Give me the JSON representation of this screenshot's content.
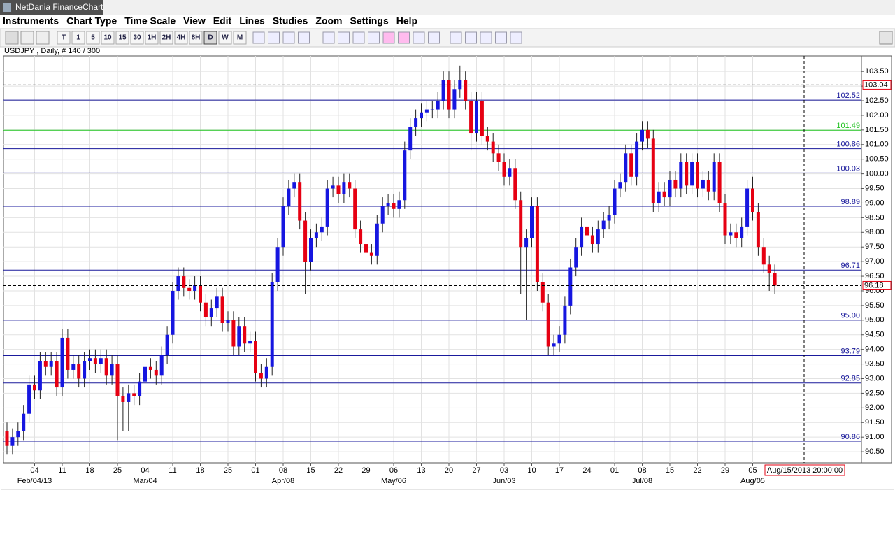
{
  "window_title": "NetDania FinanceChart",
  "menu": [
    "Instruments",
    "Chart Type",
    "Time Scale",
    "View",
    "Edit",
    "Lines",
    "Studies",
    "Zoom",
    "Settings",
    "Help"
  ],
  "toolbar": [
    "T",
    "1",
    "5",
    "10",
    "15",
    "30",
    "1H",
    "2H",
    "4H",
    "8H",
    "D",
    "W",
    "M"
  ],
  "chart_data": {
    "type": "candlestick",
    "title": "USDJPY , Daily, # 140 / 300",
    "categories": [
      null,
      null,
      null,
      null,
      null,
      "04",
      null,
      null,
      null,
      null,
      "11",
      null,
      null,
      null,
      null,
      "18",
      null,
      null,
      null,
      null,
      "25",
      null,
      null,
      null,
      null,
      "04",
      null,
      null,
      null,
      null,
      "11",
      null,
      null,
      null,
      null,
      "18",
      null,
      null,
      null,
      null,
      "25",
      null,
      null,
      null,
      null,
      "01",
      null,
      null,
      null,
      null,
      "08",
      null,
      null,
      null,
      null,
      "15",
      null,
      null,
      null,
      null,
      "22",
      null,
      null,
      null,
      null,
      "29",
      null,
      null,
      null,
      null,
      "06",
      null,
      null,
      null,
      null,
      "13",
      null,
      null,
      null,
      null,
      "20",
      null,
      null,
      null,
      null,
      "27",
      null,
      null,
      null,
      null,
      "03",
      null,
      null,
      null,
      null,
      "10",
      null,
      null,
      null,
      null,
      "17",
      null,
      null,
      null,
      null,
      "24",
      null,
      null,
      null,
      null,
      "01",
      null,
      null,
      null,
      null,
      "08",
      null,
      null,
      null,
      null,
      "15",
      null,
      null,
      null,
      null,
      "22",
      null,
      null,
      null,
      null,
      "29",
      null,
      null,
      null,
      null,
      "05",
      null,
      null,
      null,
      null
    ],
    "month_labels": [
      null,
      null,
      null,
      null,
      null,
      "Feb/04/13",
      null,
      null,
      null,
      null,
      null,
      null,
      null,
      null,
      null,
      null,
      null,
      null,
      null,
      null,
      null,
      null,
      null,
      null,
      null,
      "Mar/04",
      null,
      null,
      null,
      null,
      null,
      null,
      null,
      null,
      null,
      null,
      null,
      null,
      null,
      null,
      null,
      null,
      null,
      null,
      null,
      null,
      null,
      null,
      null,
      null,
      "Apr/08",
      null,
      null,
      null,
      null,
      null,
      null,
      null,
      null,
      null,
      null,
      null,
      null,
      null,
      null,
      null,
      null,
      null,
      null,
      null,
      "May/06",
      null,
      null,
      null,
      null,
      null,
      null,
      null,
      null,
      null,
      null,
      null,
      null,
      null,
      null,
      null,
      null,
      null,
      null,
      null,
      "Jun/03",
      null,
      null,
      null,
      null,
      null,
      null,
      null,
      null,
      null,
      null,
      null,
      null,
      null,
      null,
      null,
      null,
      null,
      null,
      null,
      null,
      null,
      null,
      null,
      null,
      "Jul/08",
      null,
      null,
      null,
      null,
      null,
      null,
      null,
      null,
      null,
      null,
      null,
      null,
      null,
      null,
      null,
      null,
      null,
      null,
      null,
      "Aug/05",
      null,
      null,
      null,
      null
    ],
    "ohlc": [
      [
        91.2,
        91.5,
        90.4,
        90.7
      ],
      [
        90.7,
        91.3,
        90.4,
        91.0
      ],
      [
        91.0,
        91.5,
        90.7,
        91.2
      ],
      [
        91.2,
        92.1,
        90.9,
        91.8
      ],
      [
        91.8,
        93.1,
        91.5,
        92.8
      ],
      [
        92.8,
        93.1,
        92.3,
        92.6
      ],
      [
        92.6,
        93.9,
        92.3,
        93.6
      ],
      [
        93.6,
        93.9,
        93.1,
        93.4
      ],
      [
        93.4,
        93.9,
        93.1,
        93.6
      ],
      [
        93.6,
        93.9,
        92.4,
        92.7
      ],
      [
        92.7,
        94.7,
        92.4,
        94.4
      ],
      [
        94.4,
        94.7,
        93.0,
        93.3
      ],
      [
        93.3,
        93.8,
        93.0,
        93.5
      ],
      [
        93.5,
        93.8,
        92.7,
        93.0
      ],
      [
        93.0,
        93.9,
        92.7,
        93.6
      ],
      [
        93.6,
        94.0,
        93.3,
        93.7
      ],
      [
        93.7,
        94.0,
        93.2,
        93.5
      ],
      [
        93.5,
        94.0,
        93.2,
        93.7
      ],
      [
        93.7,
        94.0,
        92.8,
        93.1
      ],
      [
        93.1,
        93.8,
        92.8,
        93.5
      ],
      [
        93.5,
        93.8,
        90.9,
        92.4
      ],
      [
        92.4,
        92.7,
        91.2,
        92.2
      ],
      [
        92.2,
        92.8,
        91.2,
        92.5
      ],
      [
        92.5,
        92.8,
        92.1,
        92.4
      ],
      [
        92.4,
        93.2,
        92.1,
        92.9
      ],
      [
        92.9,
        93.7,
        92.6,
        93.4
      ],
      [
        93.4,
        93.7,
        93.0,
        93.3
      ],
      [
        93.3,
        93.6,
        92.8,
        93.1
      ],
      [
        93.1,
        94.1,
        92.8,
        93.8
      ],
      [
        93.8,
        94.8,
        93.5,
        94.5
      ],
      [
        94.5,
        96.3,
        94.2,
        96.0
      ],
      [
        96.0,
        96.8,
        95.7,
        96.5
      ],
      [
        96.5,
        96.8,
        95.8,
        96.1
      ],
      [
        96.1,
        96.4,
        95.7,
        96.0
      ],
      [
        96.0,
        96.5,
        95.7,
        96.2
      ],
      [
        96.2,
        96.5,
        95.3,
        95.6
      ],
      [
        95.6,
        95.9,
        94.8,
        95.1
      ],
      [
        95.1,
        95.7,
        94.8,
        95.4
      ],
      [
        95.4,
        96.1,
        95.1,
        95.8
      ],
      [
        95.8,
        96.1,
        94.6,
        94.9
      ],
      [
        94.9,
        95.3,
        94.6,
        95.0
      ],
      [
        95.0,
        95.3,
        93.8,
        94.1
      ],
      [
        94.1,
        95.1,
        93.8,
        94.8
      ],
      [
        94.8,
        95.1,
        93.9,
        94.2
      ],
      [
        94.2,
        94.6,
        93.9,
        94.3
      ],
      [
        94.3,
        94.6,
        92.9,
        93.2
      ],
      [
        93.2,
        93.5,
        92.7,
        93.0
      ],
      [
        93.0,
        93.7,
        92.7,
        93.4
      ],
      [
        93.4,
        96.6,
        93.1,
        96.3
      ],
      [
        96.3,
        97.8,
        96.0,
        97.5
      ],
      [
        97.5,
        99.2,
        97.2,
        98.9
      ],
      [
        98.9,
        99.8,
        98.6,
        99.5
      ],
      [
        99.5,
        100.0,
        99.2,
        99.7
      ],
      [
        99.7,
        100.0,
        98.1,
        98.4
      ],
      [
        98.4,
        98.7,
        95.9,
        97.0
      ],
      [
        97.0,
        98.1,
        96.7,
        97.8
      ],
      [
        97.8,
        98.3,
        97.5,
        98.0
      ],
      [
        98.0,
        98.5,
        97.7,
        98.2
      ],
      [
        98.2,
        99.8,
        97.9,
        99.5
      ],
      [
        99.5,
        99.9,
        99.2,
        99.6
      ],
      [
        99.6,
        99.9,
        99.0,
        99.3
      ],
      [
        99.3,
        100.0,
        99.0,
        99.7
      ],
      [
        99.7,
        100.0,
        99.2,
        99.5
      ],
      [
        99.5,
        99.8,
        97.8,
        98.1
      ],
      [
        98.1,
        98.4,
        97.3,
        97.6
      ],
      [
        97.6,
        97.9,
        97.0,
        97.3
      ],
      [
        97.3,
        97.6,
        96.9,
        97.2
      ],
      [
        97.2,
        98.6,
        96.9,
        98.3
      ],
      [
        98.3,
        99.2,
        98.0,
        98.9
      ],
      [
        98.9,
        99.3,
        98.6,
        99.0
      ],
      [
        99.0,
        99.3,
        98.5,
        98.8
      ],
      [
        98.8,
        99.4,
        98.5,
        99.1
      ],
      [
        99.1,
        101.1,
        98.8,
        100.8
      ],
      [
        100.8,
        101.9,
        100.5,
        101.6
      ],
      [
        101.6,
        102.2,
        101.3,
        101.9
      ],
      [
        101.9,
        102.4,
        101.6,
        102.1
      ],
      [
        102.1,
        102.5,
        101.8,
        102.2
      ],
      [
        102.2,
        102.5,
        101.9,
        102.2
      ],
      [
        102.2,
        102.8,
        101.9,
        102.5
      ],
      [
        102.5,
        103.5,
        102.2,
        103.2
      ],
      [
        103.2,
        103.5,
        101.9,
        102.2
      ],
      [
        102.2,
        103.2,
        101.9,
        102.9
      ],
      [
        102.9,
        103.7,
        102.6,
        103.2
      ],
      [
        103.2,
        103.5,
        102.2,
        102.5
      ],
      [
        102.5,
        102.8,
        100.8,
        101.4
      ],
      [
        101.4,
        102.8,
        101.1,
        102.5
      ],
      [
        102.5,
        102.8,
        101.0,
        101.3
      ],
      [
        101.3,
        101.6,
        100.8,
        101.1
      ],
      [
        101.1,
        101.4,
        100.4,
        100.7
      ],
      [
        100.7,
        101.0,
        100.1,
        100.4
      ],
      [
        100.4,
        100.7,
        99.6,
        99.9
      ],
      [
        99.9,
        100.5,
        99.6,
        100.2
      ],
      [
        100.2,
        100.5,
        98.8,
        99.1
      ],
      [
        99.1,
        99.4,
        95.9,
        97.5
      ],
      [
        97.5,
        98.1,
        95.0,
        97.8
      ],
      [
        97.8,
        99.2,
        97.5,
        98.9
      ],
      [
        98.9,
        99.2,
        96.0,
        96.3
      ],
      [
        96.3,
        96.6,
        95.3,
        95.6
      ],
      [
        95.6,
        95.9,
        93.8,
        94.1
      ],
      [
        94.1,
        94.5,
        93.8,
        94.2
      ],
      [
        94.2,
        94.8,
        93.9,
        94.5
      ],
      [
        94.5,
        95.8,
        94.2,
        95.5
      ],
      [
        95.5,
        97.1,
        95.2,
        96.8
      ],
      [
        96.8,
        97.8,
        96.5,
        97.5
      ],
      [
        97.5,
        98.5,
        97.2,
        98.2
      ],
      [
        98.2,
        98.5,
        97.6,
        97.9
      ],
      [
        97.9,
        98.2,
        97.3,
        97.6
      ],
      [
        97.6,
        98.4,
        97.3,
        98.1
      ],
      [
        98.1,
        98.7,
        97.8,
        98.4
      ],
      [
        98.4,
        98.9,
        98.1,
        98.6
      ],
      [
        98.6,
        99.8,
        98.3,
        99.5
      ],
      [
        99.5,
        100.0,
        99.2,
        99.7
      ],
      [
        99.7,
        101.0,
        99.4,
        100.7
      ],
      [
        100.7,
        101.0,
        99.6,
        99.9
      ],
      [
        99.9,
        101.4,
        99.6,
        101.1
      ],
      [
        101.1,
        101.8,
        100.8,
        101.5
      ],
      [
        101.5,
        101.8,
        100.9,
        101.2
      ],
      [
        101.2,
        101.5,
        98.7,
        99.0
      ],
      [
        99.0,
        99.7,
        98.7,
        99.4
      ],
      [
        99.4,
        99.7,
        98.9,
        99.2
      ],
      [
        99.2,
        100.1,
        98.9,
        99.8
      ],
      [
        99.8,
        100.1,
        99.2,
        99.5
      ],
      [
        99.5,
        100.7,
        99.2,
        100.4
      ],
      [
        100.4,
        100.7,
        99.3,
        99.6
      ],
      [
        99.6,
        100.7,
        99.3,
        100.4
      ],
      [
        100.4,
        100.7,
        99.2,
        99.5
      ],
      [
        99.5,
        100.1,
        99.2,
        99.8
      ],
      [
        99.8,
        100.1,
        99.1,
        99.4
      ],
      [
        99.4,
        100.7,
        99.1,
        100.4
      ],
      [
        100.4,
        100.7,
        98.7,
        99.0
      ],
      [
        99.0,
        99.3,
        97.6,
        97.9
      ],
      [
        97.9,
        98.3,
        97.6,
        98.0
      ],
      [
        98.0,
        98.3,
        97.5,
        97.8
      ],
      [
        97.8,
        98.5,
        97.5,
        98.2
      ],
      [
        98.2,
        99.8,
        97.9,
        99.5
      ],
      [
        99.5,
        99.9,
        98.4,
        98.7
      ],
      [
        98.7,
        99.0,
        97.2,
        97.5
      ],
      [
        97.5,
        97.8,
        96.6,
        96.9
      ],
      [
        96.9,
        97.2,
        96.0,
        96.6
      ],
      [
        96.6,
        96.9,
        95.9,
        96.18
      ]
    ],
    "up_color": "#1616e0",
    "down_color": "#e60012",
    "ylim": [
      90.12,
      104.03
    ],
    "yticks": [
      {
        "value": 90.5,
        "label": "90.50"
      },
      {
        "value": 91,
        "label": "91.00"
      },
      {
        "value": 91.5,
        "label": "91.50"
      },
      {
        "value": 92,
        "label": "92.00"
      },
      {
        "value": 92.5,
        "label": "92.50"
      },
      {
        "value": 93,
        "label": "93.00"
      },
      {
        "value": 93.5,
        "label": "93.50"
      },
      {
        "value": 94,
        "label": "94.00"
      },
      {
        "value": 94.5,
        "label": "94.50"
      },
      {
        "value": 95,
        "label": "95.00"
      },
      {
        "value": 95.5,
        "label": "95.50"
      },
      {
        "value": 96,
        "label": "96.00"
      },
      {
        "value": 96.5,
        "label": "96.50"
      },
      {
        "value": 97,
        "label": "97.00"
      },
      {
        "value": 97.5,
        "label": "97.50"
      },
      {
        "value": 98,
        "label": "98.00"
      },
      {
        "value": 98.5,
        "label": "98.50"
      },
      {
        "value": 99,
        "label": "99.00"
      },
      {
        "value": 99.5,
        "label": "99.50"
      },
      {
        "value": 100,
        "label": "100.00"
      },
      {
        "value": 100.5,
        "label": "100.50"
      },
      {
        "value": 101,
        "label": "101.00"
      },
      {
        "value": 101.5,
        "label": "101.50"
      },
      {
        "value": 102,
        "label": "102.00"
      },
      {
        "value": 102.5,
        "label": "102.50"
      },
      {
        "value": 103,
        "label": "103.00"
      },
      {
        "value": 103.5,
        "label": "103.50"
      }
    ],
    "grid": true,
    "levels": [
      {
        "value": 102.52,
        "color": "#1a1a9c"
      },
      {
        "value": 101.49,
        "color": "#1fc21f"
      },
      {
        "value": 100.86,
        "color": "#1a1a9c"
      },
      {
        "value": 100.03,
        "color": "#1a1a9c"
      },
      {
        "value": 98.89,
        "color": "#1a1a9c"
      },
      {
        "value": 96.71,
        "color": "#1a1a9c"
      },
      {
        "value": 95,
        "label": "95.00",
        "color": "#1a1a9c"
      },
      {
        "value": 93.79,
        "color": "#1a1a9c"
      },
      {
        "value": 92.85,
        "color": "#1a1a9c"
      },
      {
        "value": 90.86,
        "color": "#1a1a9c"
      }
    ],
    "marker_level": 103.04,
    "current_price": 96.18,
    "cursor_date": "Aug/15/2013 20:00:00"
  }
}
